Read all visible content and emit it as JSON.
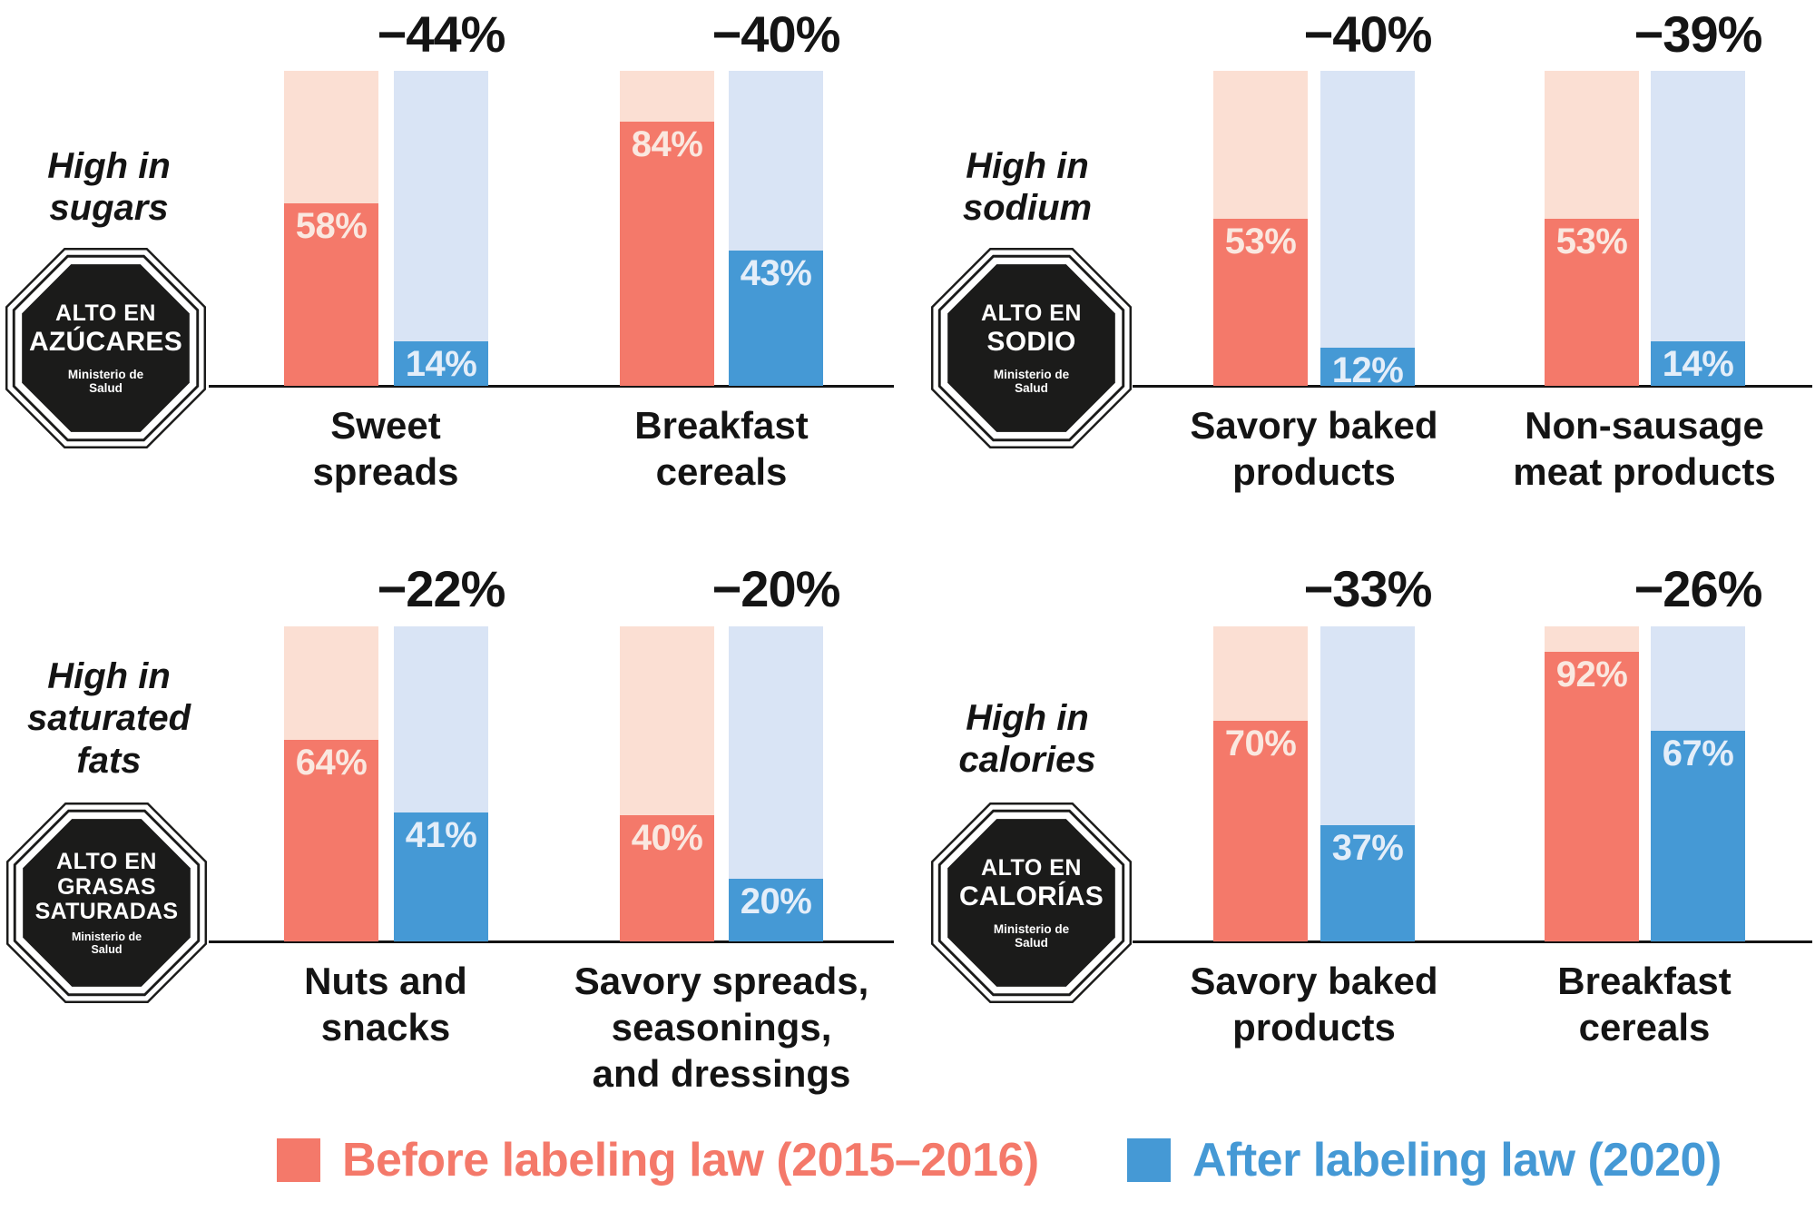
{
  "chart_data": {
    "type": "bar",
    "description_layout": {
      "value_axis_min": 0,
      "value_axis_max": 100,
      "grid": false,
      "legend_position": "bottom"
    },
    "colors": {
      "before": "#F4796A",
      "before_light": "#FBDFD3",
      "after": "#4599D5",
      "after_light": "#D9E4F5",
      "octagon_black": "#1B1B1A",
      "text": "#141414"
    },
    "legend": {
      "before": "Before labeling law (2015–2016)",
      "after": "After labeling law (2020)"
    },
    "panels": [
      {
        "heading_lines": [
          "High in",
          "sugars"
        ],
        "octagon": {
          "line1": "ALTO EN",
          "line2": "AZÚCARES",
          "line3": "",
          "ministry": "Ministerio de Salud"
        },
        "groups": [
          {
            "category_lines": [
              "Sweet",
              "spreads"
            ],
            "change": "−44%",
            "before": {
              "value": 58,
              "label": "58%"
            },
            "after": {
              "value": 14,
              "label": "14%"
            }
          },
          {
            "category_lines": [
              "Breakfast",
              "cereals"
            ],
            "change": "−40%",
            "before": {
              "value": 84,
              "label": "84%"
            },
            "after": {
              "value": 43,
              "label": "43%"
            }
          }
        ]
      },
      {
        "heading_lines": [
          "High in",
          "sodium"
        ],
        "octagon": {
          "line1": "ALTO EN",
          "line2": "SODIO",
          "line3": "",
          "ministry": "Ministerio de Salud"
        },
        "groups": [
          {
            "category_lines": [
              "Savory baked",
              "products"
            ],
            "change": "−40%",
            "before": {
              "value": 53,
              "label": "53%"
            },
            "after": {
              "value": 12,
              "label": "12%"
            }
          },
          {
            "category_lines": [
              "Non-sausage",
              "meat products"
            ],
            "change": "−39%",
            "before": {
              "value": 53,
              "label": "53%"
            },
            "after": {
              "value": 14,
              "label": "14%"
            }
          }
        ]
      },
      {
        "heading_lines": [
          "High in",
          "saturated",
          "fats"
        ],
        "octagon": {
          "line1": "ALTO EN",
          "line2": "GRASAS",
          "line3": "SATURADAS",
          "ministry": "Ministerio de Salud"
        },
        "groups": [
          {
            "category_lines": [
              "Nuts and",
              "snacks"
            ],
            "change": "−22%",
            "before": {
              "value": 64,
              "label": "64%"
            },
            "after": {
              "value": 41,
              "label": "41%"
            }
          },
          {
            "category_lines": [
              "Savory spreads,",
              "seasonings,",
              "and dressings"
            ],
            "change": "−20%",
            "before": {
              "value": 40,
              "label": "40%"
            },
            "after": {
              "value": 20,
              "label": "20%"
            }
          }
        ]
      },
      {
        "heading_lines": [
          "High in",
          "calories"
        ],
        "octagon": {
          "line1": "ALTO EN",
          "line2": "CALORÍAS",
          "line3": "",
          "ministry": "Ministerio de Salud"
        },
        "groups": [
          {
            "category_lines": [
              "Savory baked",
              "products"
            ],
            "change": "−33%",
            "before": {
              "value": 70,
              "label": "70%"
            },
            "after": {
              "value": 37,
              "label": "37%"
            }
          },
          {
            "category_lines": [
              "Breakfast",
              "cereals"
            ],
            "change": "−26%",
            "before": {
              "value": 92,
              "label": "92%"
            },
            "after": {
              "value": 67,
              "label": "67%"
            }
          }
        ]
      }
    ]
  }
}
